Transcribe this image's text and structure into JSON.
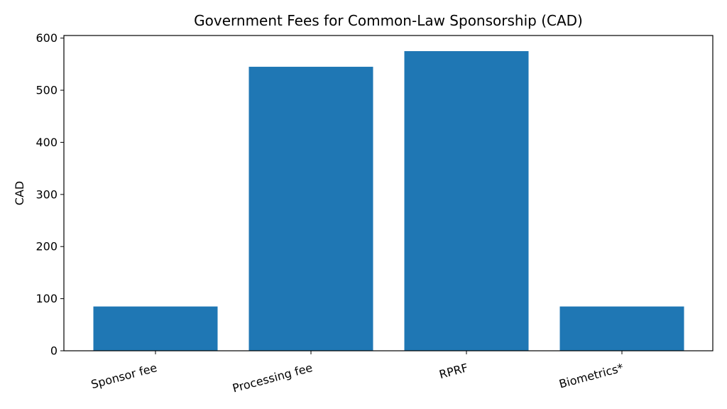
{
  "chart_data": {
    "type": "bar",
    "title": "Government Fees for Common-Law Sponsorship (CAD)",
    "xlabel": "",
    "ylabel": "CAD",
    "categories": [
      "Sponsor fee",
      "Processing fee",
      "RPRF",
      "Biometrics*"
    ],
    "values": [
      85,
      545,
      575,
      85
    ],
    "ylim": [
      0,
      605
    ],
    "yticks": [
      0,
      100,
      200,
      300,
      400,
      500,
      600
    ],
    "grid": false,
    "bar_color": "#1f77b4"
  }
}
